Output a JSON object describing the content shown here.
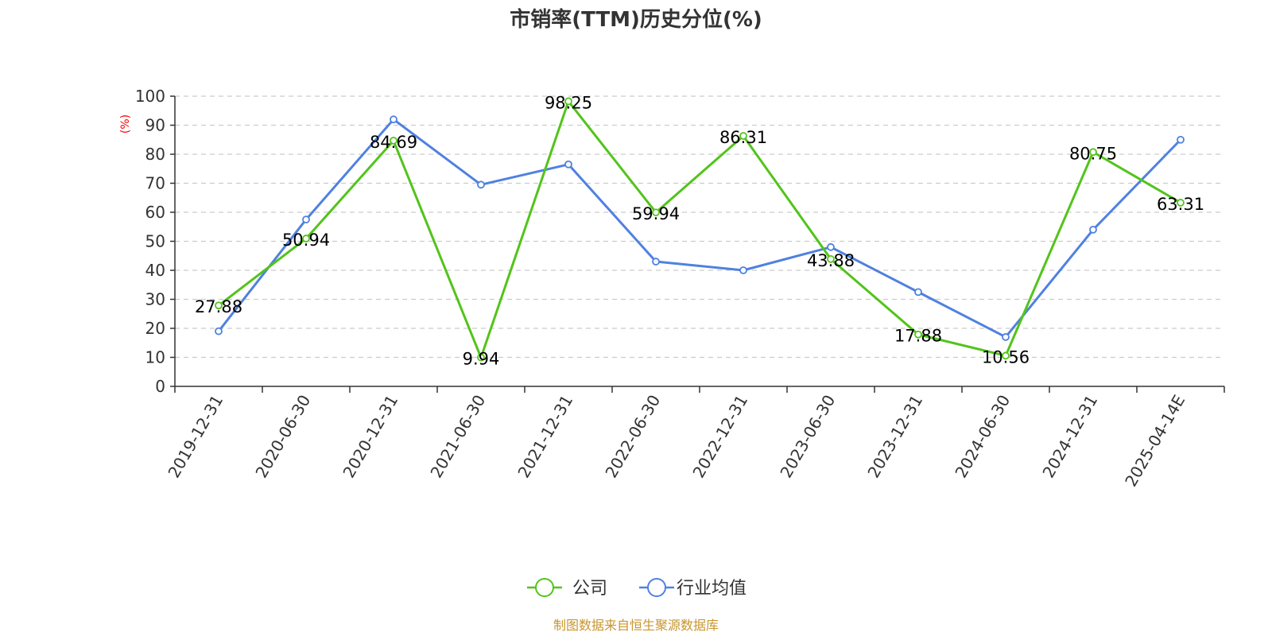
{
  "chart_data": {
    "type": "line",
    "title": "市销率(TTM)历史分位(%)",
    "ylabel": "(%)",
    "xlabel": "",
    "ylim": [
      0,
      100
    ],
    "yticks": [
      0,
      10,
      20,
      30,
      40,
      50,
      60,
      70,
      80,
      90,
      100
    ],
    "categories": [
      "2019-12-31",
      "2020-06-30",
      "2020-12-31",
      "2021-06-30",
      "2021-12-31",
      "2022-06-30",
      "2022-12-31",
      "2023-06-30",
      "2023-12-31",
      "2024-06-30",
      "2024-12-31",
      "2025-04-14E"
    ],
    "grid": true,
    "legend_position": "bottom",
    "series": [
      {
        "name": "公司",
        "color": "#52c41a",
        "values": [
          27.88,
          50.94,
          84.69,
          9.94,
          98.25,
          59.94,
          86.31,
          43.88,
          17.88,
          10.56,
          80.75,
          63.31
        ],
        "labels": [
          "27.88",
          "50.94",
          "84.69",
          "9.94",
          "98.25",
          "59.94",
          "86.31",
          "43.88",
          "17.88",
          "10.56",
          "80.75",
          "63.31"
        ]
      },
      {
        "name": "行业均值",
        "color": "#4f81e0",
        "values": [
          19,
          57.5,
          92,
          69.5,
          76.5,
          43,
          40,
          48,
          32.5,
          17,
          54,
          85
        ]
      }
    ]
  },
  "footer": {
    "source": "制图数据来自恒生聚源数据库"
  }
}
